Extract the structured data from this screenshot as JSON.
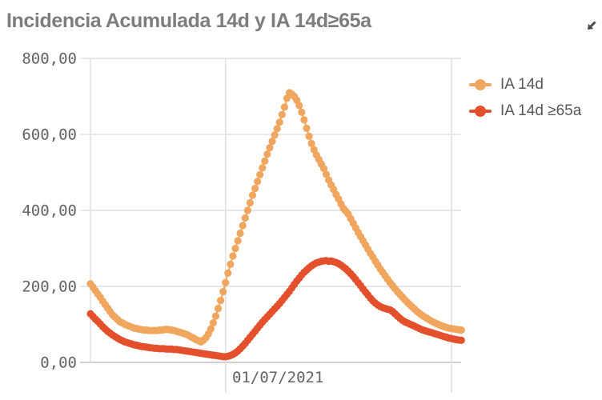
{
  "header": {
    "title": "Incidencia Acumulada 14d y IA 14d≥65a"
  },
  "colors": {
    "series_ia14d": "#F1A65F",
    "series_ia14d_65": "#E4502C",
    "grid": "#E1E1E1",
    "axis_line": "#C2C2C2",
    "tick_text": "#636363",
    "title_text": "#7D7D7F",
    "legend_text": "#59595B",
    "icon": "#4A4A4A"
  },
  "chart_data": {
    "type": "line",
    "title": "Incidencia Acumulada 14d y IA 14d≥65a",
    "grid": "on",
    "y_axis": {
      "range": [
        0,
        800
      ],
      "ticks": [
        {
          "label": "800,00",
          "value": 800
        },
        {
          "label": "600,00",
          "value": 600
        },
        {
          "label": "400,00",
          "value": 400
        },
        {
          "label": "200,00",
          "value": 200
        },
        {
          "label": "0,00",
          "value": 0
        }
      ]
    },
    "x_axis": {
      "ticks": [
        {
          "label": "01/07/2021",
          "day_index": 55
        }
      ],
      "gridline_days": [
        55,
        147
      ]
    },
    "legend": {
      "position": "right",
      "entries": [
        {
          "label": "IA 14d",
          "color": "#F1A65F"
        },
        {
          "label": "IA 14d ≥65a",
          "color": "#E4502C"
        }
      ]
    },
    "series": [
      {
        "name": "IA 14d",
        "color": "#F1A65F",
        "values": [
          207,
          198,
          189,
          180,
          171,
          161,
          152,
          143,
          134,
          125,
          119,
          113,
          107,
          104,
          100,
          97,
          95,
          92,
          90,
          89,
          87,
          86,
          85,
          85,
          84,
          84,
          84,
          84,
          85,
          85,
          86,
          87,
          86,
          85,
          84,
          82,
          80,
          78,
          76,
          74,
          71,
          67,
          64,
          60,
          57,
          54,
          58,
          65,
          75,
          88,
          104,
          122,
          142,
          163,
          186,
          210,
          235,
          258,
          280,
          300,
          320,
          340,
          360,
          380,
          400,
          420,
          440,
          458,
          476,
          494,
          512,
          530,
          548,
          565,
          582,
          598,
          615,
          632,
          652,
          672,
          695,
          710,
          706,
          700,
          690,
          676,
          658,
          638,
          616,
          595,
          576,
          560,
          546,
          534,
          522,
          510,
          495,
          480,
          467,
          455,
          442,
          430,
          417,
          405,
          398,
          390,
          378,
          366,
          354,
          342,
          331,
          320,
          309,
          298,
          287,
          277,
          266,
          256,
          246,
          237,
          228,
          219,
          210,
          202,
          194,
          186,
          179,
          172,
          165,
          158,
          152,
          146,
          140,
          134,
          129,
          124,
          120,
          116,
          112,
          108,
          105,
          102,
          99,
          96,
          94,
          92,
          90,
          89,
          88,
          87,
          86,
          85
        ]
      },
      {
        "name": "IA 14d ≥65a",
        "color": "#E4502C",
        "values": [
          128,
          121,
          114,
          108,
          101,
          94,
          88,
          82,
          77,
          72,
          68,
          64,
          60,
          57,
          54,
          52,
          50,
          48,
          46,
          45,
          43,
          42,
          41,
          40,
          39,
          38,
          37,
          37,
          36,
          36,
          36,
          35,
          35,
          35,
          34,
          34,
          33,
          32,
          31,
          30,
          29,
          28,
          27,
          26,
          25,
          24,
          23,
          22,
          21,
          20,
          19,
          18,
          17,
          16,
          15,
          15,
          16,
          18,
          21,
          25,
          30,
          36,
          43,
          50,
          58,
          66,
          74,
          82,
          90,
          98,
          106,
          113,
          120,
          127,
          134,
          141,
          148,
          155,
          163,
          171,
          179,
          187,
          196,
          205,
          214,
          222,
          230,
          237,
          243,
          249,
          254,
          258,
          262,
          264,
          266,
          267,
          268,
          266,
          267,
          265,
          263,
          260,
          256,
          251,
          246,
          240,
          233,
          226,
          218,
          210,
          202,
          193,
          185,
          177,
          169,
          162,
          156,
          151,
          147,
          144,
          142,
          140,
          138,
          134,
          128,
          122,
          116,
          111,
          107,
          104,
          101,
          98,
          95,
          92,
          89,
          86,
          84,
          82,
          80,
          78,
          76,
          74,
          72,
          70,
          68,
          66,
          64,
          63,
          61,
          60,
          59,
          58
        ]
      }
    ]
  }
}
